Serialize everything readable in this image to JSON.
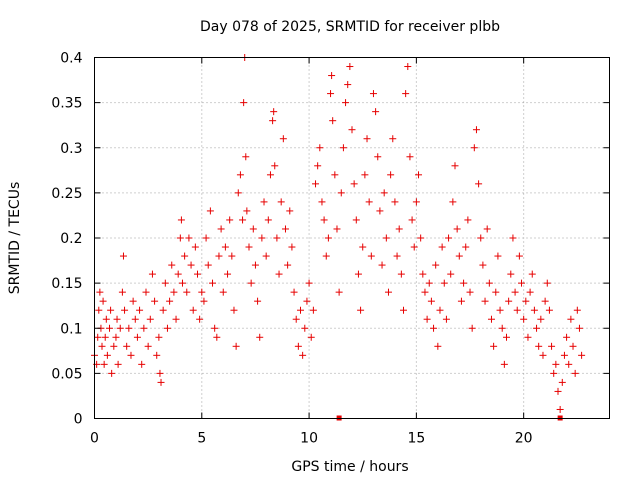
{
  "chart_data": {
    "type": "scatter",
    "title": "Day 078 of 2025, SRMTID for receiver plbb",
    "xlabel": "GPS time / hours",
    "ylabel": "SRMTID / TECUs",
    "xlim": [
      0,
      24
    ],
    "ylim": [
      0,
      0.4
    ],
    "x_ticks": [
      0,
      5,
      10,
      15,
      20
    ],
    "x_tick_labels": [
      "0",
      "5",
      "10",
      "15",
      "20"
    ],
    "y_ticks": [
      0,
      0.05,
      0.1,
      0.15,
      0.2,
      0.25,
      0.3,
      0.35,
      0.4
    ],
    "y_tick_labels": [
      "0",
      "0.05",
      "0.1",
      "0.15",
      "0.2",
      "0.25",
      "0.3",
      "0.35",
      "0.4"
    ],
    "grid": true,
    "marker": "+",
    "color": "#e60000",
    "axis_markers_x": [
      11.4,
      21.7
    ],
    "series": [
      {
        "name": "SRMTID",
        "points": [
          [
            0.0,
            0.07
          ],
          [
            0.1,
            0.06
          ],
          [
            0.15,
            0.09
          ],
          [
            0.2,
            0.12
          ],
          [
            0.25,
            0.14
          ],
          [
            0.3,
            0.1
          ],
          [
            0.35,
            0.08
          ],
          [
            0.4,
            0.13
          ],
          [
            0.45,
            0.06
          ],
          [
            0.5,
            0.09
          ],
          [
            0.55,
            0.11
          ],
          [
            0.6,
            0.07
          ],
          [
            0.7,
            0.1
          ],
          [
            0.75,
            0.12
          ],
          [
            0.8,
            0.05
          ],
          [
            0.9,
            0.08
          ],
          [
            1.0,
            0.09
          ],
          [
            1.05,
            0.11
          ],
          [
            1.1,
            0.06
          ],
          [
            1.2,
            0.1
          ],
          [
            1.3,
            0.14
          ],
          [
            1.35,
            0.18
          ],
          [
            1.4,
            0.12
          ],
          [
            1.5,
            0.08
          ],
          [
            1.6,
            0.1
          ],
          [
            1.7,
            0.07
          ],
          [
            1.8,
            0.13
          ],
          [
            1.9,
            0.11
          ],
          [
            2.0,
            0.09
          ],
          [
            2.1,
            0.12
          ],
          [
            2.2,
            0.06
          ],
          [
            2.3,
            0.1
          ],
          [
            2.4,
            0.14
          ],
          [
            2.5,
            0.08
          ],
          [
            2.6,
            0.11
          ],
          [
            2.7,
            0.16
          ],
          [
            2.8,
            0.13
          ],
          [
            2.9,
            0.07
          ],
          [
            3.0,
            0.09
          ],
          [
            3.05,
            0.05
          ],
          [
            3.1,
            0.04
          ],
          [
            3.2,
            0.12
          ],
          [
            3.3,
            0.15
          ],
          [
            3.4,
            0.1
          ],
          [
            3.5,
            0.13
          ],
          [
            3.6,
            0.17
          ],
          [
            3.7,
            0.14
          ],
          [
            3.8,
            0.11
          ],
          [
            3.9,
            0.16
          ],
          [
            4.0,
            0.2
          ],
          [
            4.05,
            0.22
          ],
          [
            4.1,
            0.15
          ],
          [
            4.2,
            0.18
          ],
          [
            4.3,
            0.14
          ],
          [
            4.4,
            0.2
          ],
          [
            4.5,
            0.17
          ],
          [
            4.6,
            0.12
          ],
          [
            4.7,
            0.19
          ],
          [
            4.8,
            0.16
          ],
          [
            4.9,
            0.11
          ],
          [
            5.0,
            0.14
          ],
          [
            5.1,
            0.13
          ],
          [
            5.2,
            0.2
          ],
          [
            5.3,
            0.17
          ],
          [
            5.4,
            0.23
          ],
          [
            5.5,
            0.15
          ],
          [
            5.6,
            0.1
          ],
          [
            5.7,
            0.09
          ],
          [
            5.8,
            0.18
          ],
          [
            5.9,
            0.21
          ],
          [
            6.0,
            0.14
          ],
          [
            6.1,
            0.19
          ],
          [
            6.2,
            0.16
          ],
          [
            6.3,
            0.22
          ],
          [
            6.4,
            0.18
          ],
          [
            6.5,
            0.12
          ],
          [
            6.6,
            0.08
          ],
          [
            6.7,
            0.25
          ],
          [
            6.8,
            0.27
          ],
          [
            6.9,
            0.22
          ],
          [
            6.95,
            0.35
          ],
          [
            7.0,
            0.4
          ],
          [
            7.05,
            0.29
          ],
          [
            7.1,
            0.23
          ],
          [
            7.2,
            0.19
          ],
          [
            7.3,
            0.15
          ],
          [
            7.4,
            0.21
          ],
          [
            7.5,
            0.17
          ],
          [
            7.6,
            0.13
          ],
          [
            7.7,
            0.09
          ],
          [
            7.8,
            0.2
          ],
          [
            7.9,
            0.24
          ],
          [
            8.0,
            0.18
          ],
          [
            8.1,
            0.22
          ],
          [
            8.2,
            0.27
          ],
          [
            8.3,
            0.33
          ],
          [
            8.35,
            0.34
          ],
          [
            8.4,
            0.28
          ],
          [
            8.5,
            0.2
          ],
          [
            8.6,
            0.16
          ],
          [
            8.7,
            0.24
          ],
          [
            8.8,
            0.31
          ],
          [
            8.9,
            0.21
          ],
          [
            9.0,
            0.17
          ],
          [
            9.1,
            0.23
          ],
          [
            9.2,
            0.19
          ],
          [
            9.3,
            0.14
          ],
          [
            9.4,
            0.11
          ],
          [
            9.5,
            0.08
          ],
          [
            9.6,
            0.12
          ],
          [
            9.7,
            0.07
          ],
          [
            9.8,
            0.1
          ],
          [
            9.9,
            0.13
          ],
          [
            10.0,
            0.15
          ],
          [
            10.1,
            0.09
          ],
          [
            10.2,
            0.12
          ],
          [
            10.3,
            0.26
          ],
          [
            10.4,
            0.28
          ],
          [
            10.5,
            0.3
          ],
          [
            10.6,
            0.24
          ],
          [
            10.7,
            0.22
          ],
          [
            10.8,
            0.18
          ],
          [
            10.9,
            0.2
          ],
          [
            11.0,
            0.36
          ],
          [
            11.05,
            0.38
          ],
          [
            11.1,
            0.33
          ],
          [
            11.2,
            0.27
          ],
          [
            11.3,
            0.21
          ],
          [
            11.4,
            0.14
          ],
          [
            11.5,
            0.25
          ],
          [
            11.6,
            0.3
          ],
          [
            11.7,
            0.35
          ],
          [
            11.8,
            0.37
          ],
          [
            11.9,
            0.39
          ],
          [
            12.0,
            0.32
          ],
          [
            12.1,
            0.26
          ],
          [
            12.2,
            0.22
          ],
          [
            12.3,
            0.16
          ],
          [
            12.4,
            0.12
          ],
          [
            12.5,
            0.19
          ],
          [
            12.6,
            0.27
          ],
          [
            12.7,
            0.31
          ],
          [
            12.8,
            0.24
          ],
          [
            12.9,
            0.18
          ],
          [
            13.0,
            0.36
          ],
          [
            13.1,
            0.34
          ],
          [
            13.2,
            0.29
          ],
          [
            13.3,
            0.23
          ],
          [
            13.4,
            0.17
          ],
          [
            13.5,
            0.25
          ],
          [
            13.6,
            0.2
          ],
          [
            13.7,
            0.14
          ],
          [
            13.8,
            0.27
          ],
          [
            13.9,
            0.31
          ],
          [
            14.0,
            0.24
          ],
          [
            14.1,
            0.18
          ],
          [
            14.2,
            0.21
          ],
          [
            14.3,
            0.16
          ],
          [
            14.4,
            0.12
          ],
          [
            14.5,
            0.36
          ],
          [
            14.6,
            0.39
          ],
          [
            14.7,
            0.29
          ],
          [
            14.8,
            0.22
          ],
          [
            14.9,
            0.19
          ],
          [
            15.0,
            0.24
          ],
          [
            15.1,
            0.27
          ],
          [
            15.2,
            0.2
          ],
          [
            15.3,
            0.16
          ],
          [
            15.4,
            0.14
          ],
          [
            15.5,
            0.11
          ],
          [
            15.6,
            0.15
          ],
          [
            15.7,
            0.13
          ],
          [
            15.8,
            0.1
          ],
          [
            15.9,
            0.17
          ],
          [
            16.0,
            0.08
          ],
          [
            16.1,
            0.12
          ],
          [
            16.2,
            0.19
          ],
          [
            16.3,
            0.15
          ],
          [
            16.4,
            0.11
          ],
          [
            16.5,
            0.2
          ],
          [
            16.6,
            0.16
          ],
          [
            16.7,
            0.24
          ],
          [
            16.8,
            0.28
          ],
          [
            16.9,
            0.21
          ],
          [
            17.0,
            0.18
          ],
          [
            17.1,
            0.13
          ],
          [
            17.2,
            0.15
          ],
          [
            17.3,
            0.19
          ],
          [
            17.4,
            0.22
          ],
          [
            17.5,
            0.14
          ],
          [
            17.6,
            0.1
          ],
          [
            17.7,
            0.3
          ],
          [
            17.8,
            0.32
          ],
          [
            17.9,
            0.26
          ],
          [
            18.0,
            0.2
          ],
          [
            18.1,
            0.17
          ],
          [
            18.2,
            0.13
          ],
          [
            18.3,
            0.21
          ],
          [
            18.4,
            0.15
          ],
          [
            18.5,
            0.11
          ],
          [
            18.6,
            0.08
          ],
          [
            18.7,
            0.14
          ],
          [
            18.8,
            0.18
          ],
          [
            18.9,
            0.12
          ],
          [
            19.0,
            0.1
          ],
          [
            19.1,
            0.06
          ],
          [
            19.2,
            0.09
          ],
          [
            19.3,
            0.13
          ],
          [
            19.4,
            0.16
          ],
          [
            19.5,
            0.2
          ],
          [
            19.6,
            0.14
          ],
          [
            19.7,
            0.12
          ],
          [
            19.8,
            0.18
          ],
          [
            19.9,
            0.15
          ],
          [
            20.0,
            0.11
          ],
          [
            20.1,
            0.13
          ],
          [
            20.2,
            0.09
          ],
          [
            20.3,
            0.14
          ],
          [
            20.4,
            0.16
          ],
          [
            20.5,
            0.12
          ],
          [
            20.6,
            0.1
          ],
          [
            20.7,
            0.08
          ],
          [
            20.8,
            0.11
          ],
          [
            20.9,
            0.07
          ],
          [
            21.0,
            0.13
          ],
          [
            21.1,
            0.15
          ],
          [
            21.2,
            0.12
          ],
          [
            21.3,
            0.08
          ],
          [
            21.4,
            0.05
          ],
          [
            21.5,
            0.06
          ],
          [
            21.6,
            0.03
          ],
          [
            21.7,
            0.01
          ],
          [
            21.8,
            0.04
          ],
          [
            21.9,
            0.07
          ],
          [
            22.0,
            0.09
          ],
          [
            22.1,
            0.06
          ],
          [
            22.2,
            0.11
          ],
          [
            22.3,
            0.08
          ],
          [
            22.4,
            0.05
          ],
          [
            22.5,
            0.12
          ],
          [
            22.6,
            0.1
          ],
          [
            22.7,
            0.07
          ]
        ]
      }
    ]
  }
}
